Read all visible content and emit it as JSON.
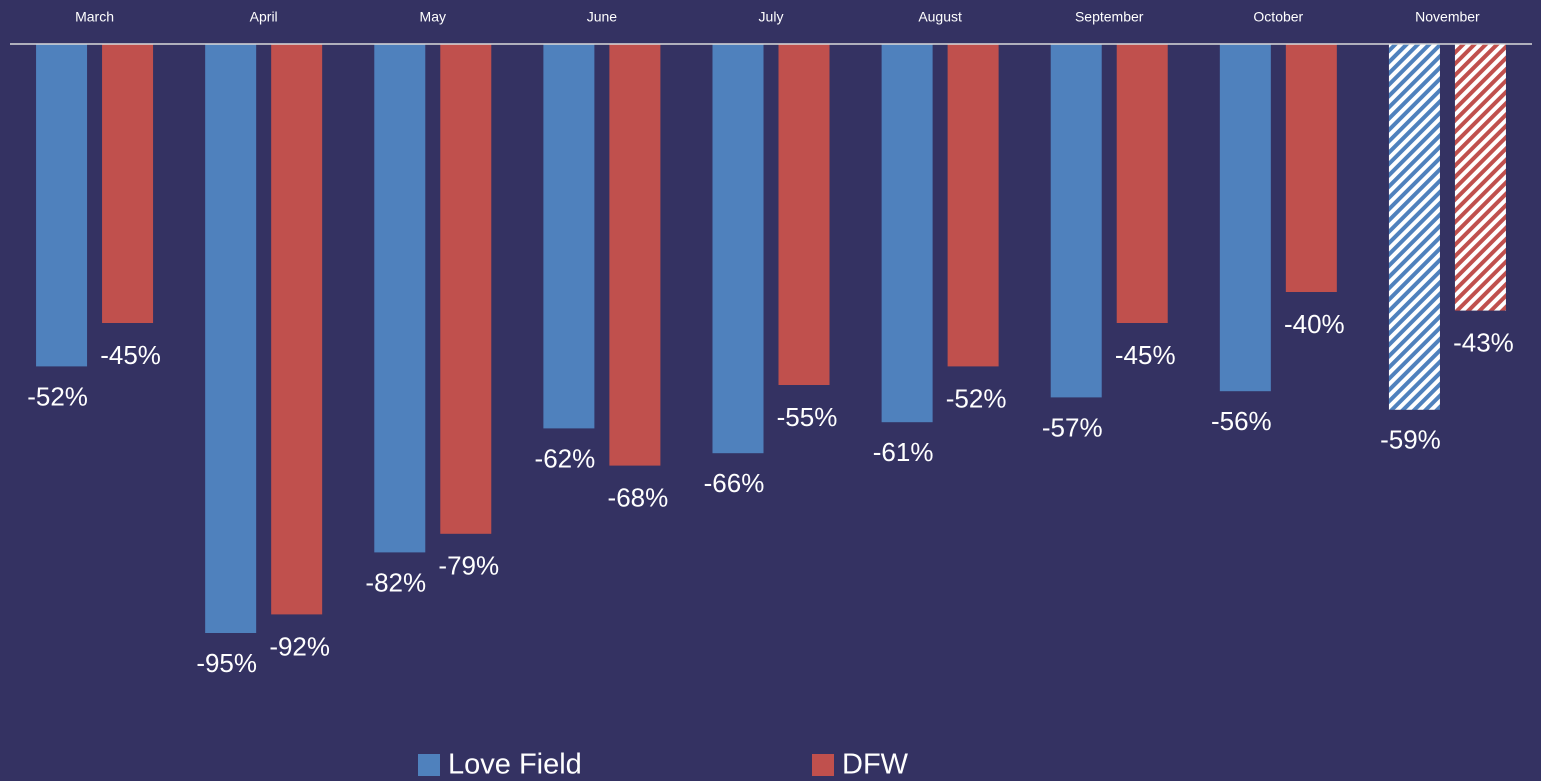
{
  "chart_data": {
    "type": "bar",
    "categories": [
      "March",
      "April",
      "May",
      "June",
      "July",
      "August",
      "September",
      "October",
      "November"
    ],
    "series": [
      {
        "name": "Love Field",
        "color": "#4f81bd",
        "values": [
          -52,
          -95,
          -82,
          -62,
          -66,
          -61,
          -57,
          -56,
          -59
        ],
        "value_labels": [
          "-52%",
          "-95%",
          "-82%",
          "-62%",
          "-66%",
          "-61%",
          "-57%",
          "-56%",
          "-59%"
        ]
      },
      {
        "name": "DFW",
        "color": "#c0504d",
        "values": [
          -45,
          -92,
          -79,
          -68,
          -55,
          -52,
          -45,
          -40,
          -43
        ],
        "value_labels": [
          "-45%",
          "-92%",
          "-79%",
          "-68%",
          "-55%",
          "-52%",
          "-45%",
          "-40%",
          "-43%"
        ]
      }
    ],
    "hatch": [
      false,
      false,
      false,
      false,
      false,
      false,
      false,
      false,
      true
    ]
  }
}
